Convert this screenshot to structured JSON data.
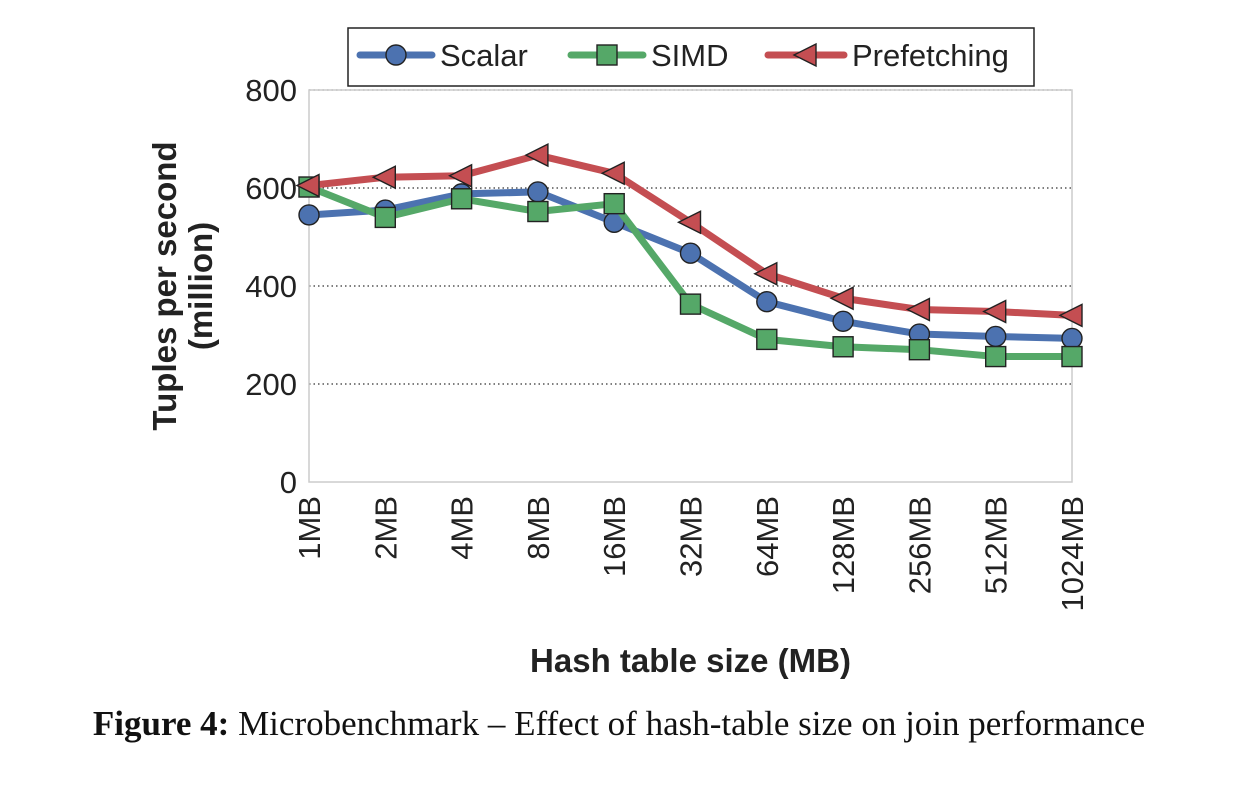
{
  "chart_data": {
    "type": "line",
    "categories": [
      "1MB",
      "2MB",
      "4MB",
      "8MB",
      "16MB",
      "32MB",
      "64MB",
      "128MB",
      "256MB",
      "512MB",
      "1024MB"
    ],
    "series": [
      {
        "name": "Scalar",
        "color": "#4c72b0",
        "marker": "circle",
        "values": [
          545,
          555,
          588,
          592,
          530,
          467,
          368,
          328,
          302,
          297,
          293
        ]
      },
      {
        "name": "SIMD",
        "color": "#55a868",
        "marker": "square",
        "values": [
          602,
          540,
          578,
          552,
          568,
          363,
          291,
          276,
          270,
          256,
          256
        ]
      },
      {
        "name": "Prefetching",
        "color": "#c44e52",
        "marker": "triangle-left",
        "values": [
          605,
          622,
          625,
          667,
          630,
          530,
          425,
          375,
          352,
          348,
          340
        ]
      }
    ],
    "xlabel": "Hash table size (MB)",
    "ylabel": "Tuples per second\n(million)",
    "ylim": [
      0,
      800
    ],
    "yticks": [
      0,
      200,
      400,
      600,
      800
    ],
    "grid": "horizontal-dotted",
    "legend_position": "top-center"
  },
  "caption": {
    "label": "Figure 4:",
    "text": "Microbenchmark – Effect of hash-table size on join performance"
  }
}
